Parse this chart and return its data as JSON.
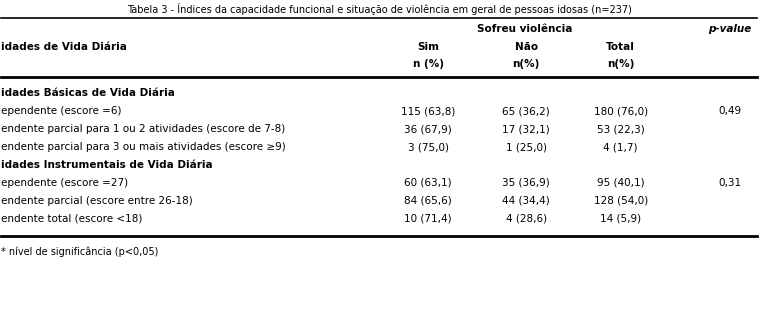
{
  "title": "Tabela 3 - Índices da capacidade funcional e situação de violência em geral de pessoas idosas (n=237)",
  "header_row1_center": "Sofreu violência",
  "header_pvalue": "p-value",
  "header_col1": "idades de Vida Diária",
  "header_sim": "Sim",
  "header_nao": "Não",
  "header_total": "Total",
  "header_n_sim": "n (%)",
  "header_n_nao": "n(%)",
  "header_n_total": "n(%)",
  "section1_title": "idades Básicas de Vida Diária",
  "section2_title": "idades Instrumentais de Vida Diária",
  "rows": [
    {
      "label": "ependente (escore =6)",
      "sim": "115 (63,8)",
      "nao": "65 (36,2)",
      "total": "180 (76,0)",
      "pvalue": "0,49",
      "section": 1
    },
    {
      "label": "endente parcial para 1 ou 2 atividades (escore de 7-8)",
      "sim": "36 (67,9)",
      "nao": "17 (32,1)",
      "total": "53 (22,3)",
      "pvalue": "",
      "section": 1
    },
    {
      "label": "endente parcial para 3 ou mais atividades (escore ≥9)",
      "sim": "3 (75,0)",
      "nao": "1 (25,0)",
      "total": "4 (1,7)",
      "pvalue": "",
      "section": 1
    },
    {
      "label": "ependente (escore =27)",
      "sim": "60 (63,1)",
      "nao": "35 (36,9)",
      "total": "95 (40,1)",
      "pvalue": "0,31",
      "section": 2
    },
    {
      "label": "endente parcial (escore entre 26-18)",
      "sim": "84 (65,6)",
      "nao": "44 (34,4)",
      "total": "128 (54,0)",
      "pvalue": "",
      "section": 2
    },
    {
      "label": "endente total (escore <18)",
      "sim": "10 (71,4)",
      "nao": "4 (28,6)",
      "total": "14 (5,9)",
      "pvalue": "",
      "section": 2
    }
  ],
  "footer": "* nível de significância (p<0,05)",
  "bg_color": "#ffffff",
  "text_color": "#000000",
  "font_size": 7.5,
  "header_font_size": 7.5,
  "title_font_size": 7.0
}
